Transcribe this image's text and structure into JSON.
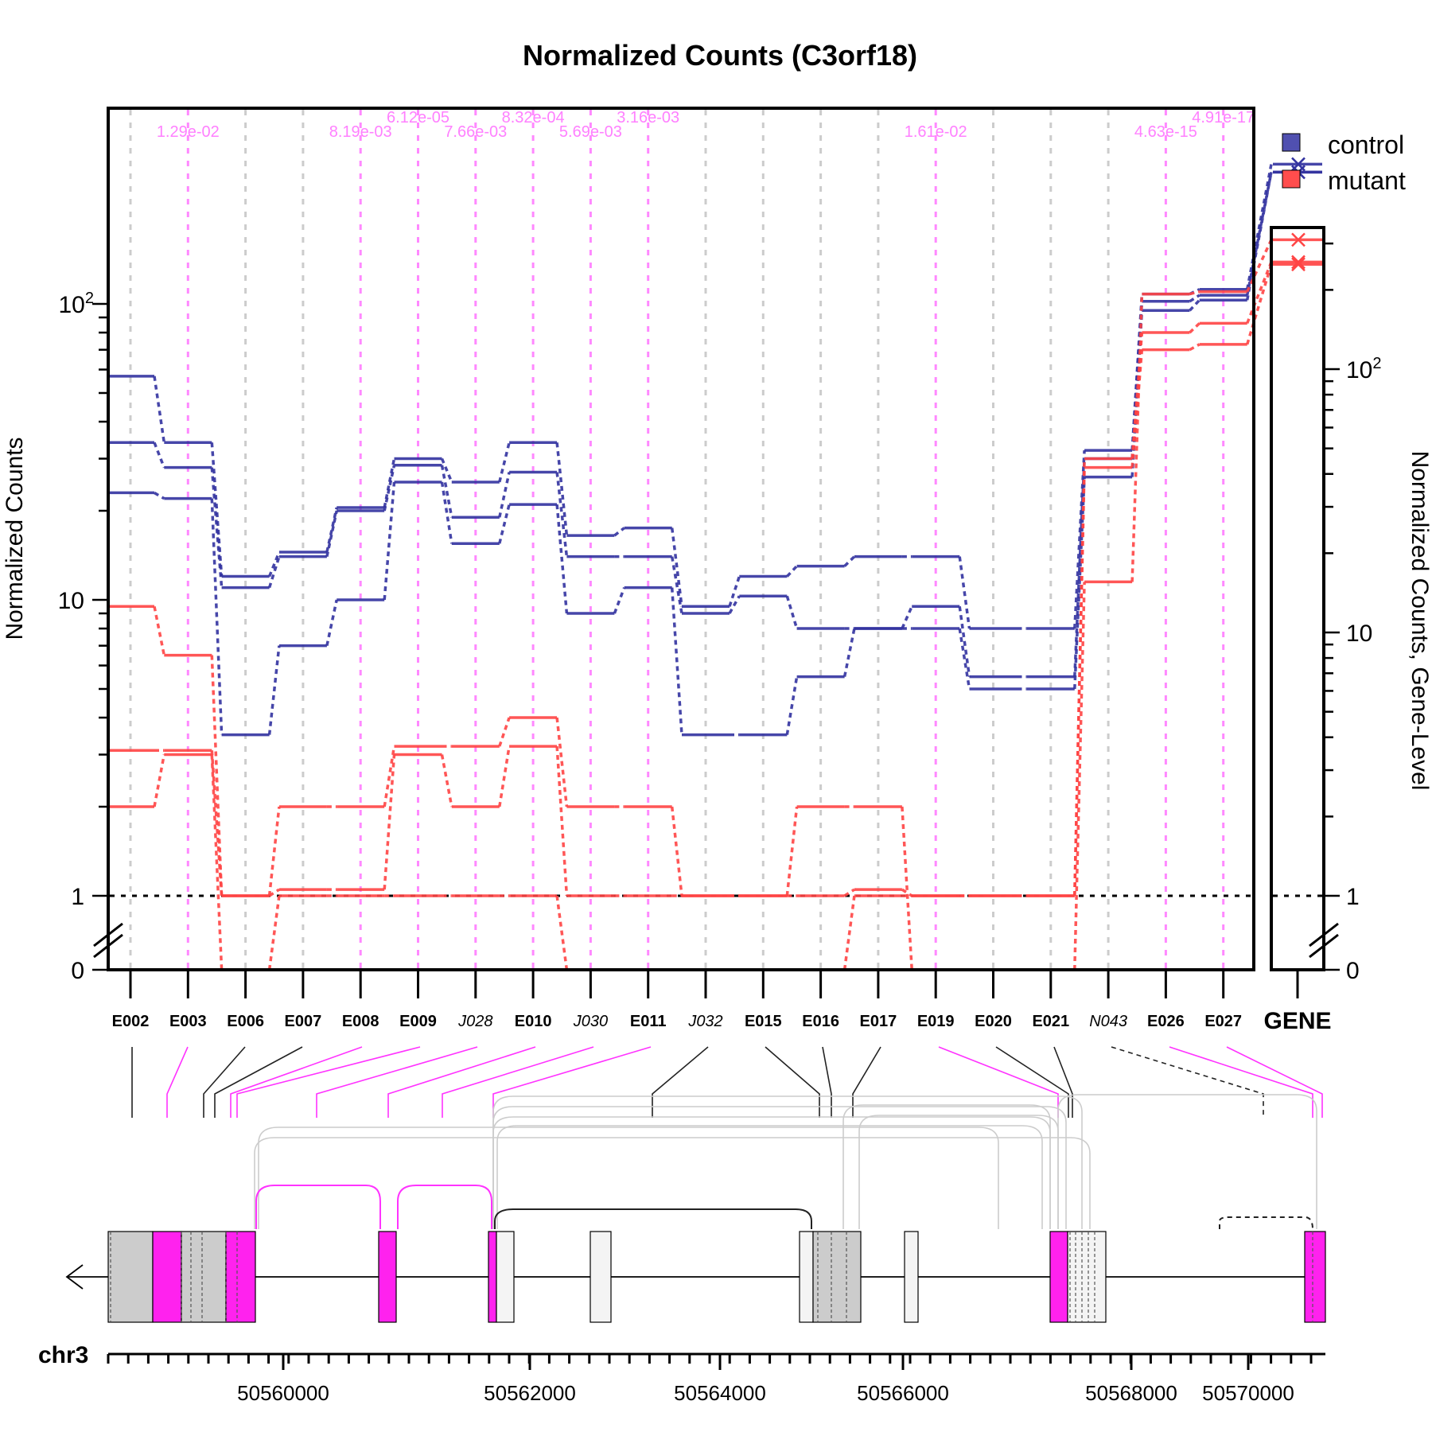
{
  "chart_data": {
    "type": "line",
    "title": "Normalized Counts (C3orf18)",
    "ylabel": "Normalized Counts",
    "ylabel_right": "Normalized Counts, Gene-Level",
    "yscale": "log (broken axis with 0)",
    "ylim": [
      0,
      130
    ],
    "y_ticks": [
      {
        "value": 0,
        "label": "0"
      },
      {
        "value": 1,
        "label": "1"
      },
      {
        "value": 10,
        "label": "10"
      },
      {
        "value": 100,
        "label": "10",
        "sup": "2"
      }
    ],
    "gene_y_ticks": [
      {
        "value": 0,
        "label": "0"
      },
      {
        "value": 1,
        "label": "1"
      },
      {
        "value": 10,
        "label": "10"
      },
      {
        "value": 100,
        "label": "10",
        "sup": "2"
      }
    ],
    "bins": [
      {
        "label": "E002",
        "kind": "exon",
        "sig": false
      },
      {
        "label": "E003",
        "kind": "exon",
        "sig": true
      },
      {
        "label": "E006",
        "kind": "exon",
        "sig": false
      },
      {
        "label": "E007",
        "kind": "exon",
        "sig": false
      },
      {
        "label": "E008",
        "kind": "exon",
        "sig": true
      },
      {
        "label": "E009",
        "kind": "exon",
        "sig": true
      },
      {
        "label": "J028",
        "kind": "junction",
        "sig": true
      },
      {
        "label": "E010",
        "kind": "exon",
        "sig": true
      },
      {
        "label": "J030",
        "kind": "junction",
        "sig": true
      },
      {
        "label": "E011",
        "kind": "exon",
        "sig": true
      },
      {
        "label": "J032",
        "kind": "junction",
        "sig": false
      },
      {
        "label": "E015",
        "kind": "exon",
        "sig": false
      },
      {
        "label": "E016",
        "kind": "exon",
        "sig": false
      },
      {
        "label": "E017",
        "kind": "exon",
        "sig": false
      },
      {
        "label": "E019",
        "kind": "exon",
        "sig": true
      },
      {
        "label": "E020",
        "kind": "exon",
        "sig": false
      },
      {
        "label": "E021",
        "kind": "exon",
        "sig": false
      },
      {
        "label": "N043",
        "kind": "novel",
        "sig": false
      },
      {
        "label": "E026",
        "kind": "exon",
        "sig": true
      },
      {
        "label": "E027",
        "kind": "exon",
        "sig": true
      }
    ],
    "gene_label": "GENE",
    "pvalues": [
      {
        "bin": 1,
        "text": "1.29e-02",
        "row": 1
      },
      {
        "bin": 4,
        "text": "8.19e-03",
        "row": 1
      },
      {
        "bin": 5,
        "text": "6.12e-05",
        "row": 0
      },
      {
        "bin": 6,
        "text": "7.66e-03",
        "row": 1
      },
      {
        "bin": 7,
        "text": "8.32e-04",
        "row": 0
      },
      {
        "bin": 8,
        "text": "5.69e-03",
        "row": 1
      },
      {
        "bin": 9,
        "text": "3.16e-03",
        "row": 0
      },
      {
        "bin": 14,
        "text": "1.61e-02",
        "row": 1
      },
      {
        "bin": 18,
        "text": "4.63e-15",
        "row": 1
      },
      {
        "bin": 19,
        "text": "4.91e-17",
        "row": 0
      }
    ],
    "series": [
      {
        "name": "control",
        "color": "#3333a0",
        "values": [
          57,
          34,
          12,
          14.5,
          20.5,
          30,
          25,
          34,
          16.5,
          17.5,
          9.5,
          12,
          13,
          14,
          14,
          8,
          8,
          32,
          108,
          112
        ]
      },
      {
        "color": "#3333a0",
        "values": [
          34,
          28,
          11,
          14,
          20,
          28.5,
          19,
          27,
          14,
          14,
          9,
          10.3,
          8,
          8,
          9.5,
          5.5,
          5.5,
          30,
          102,
          107
        ]
      },
      {
        "color": "#3333a0",
        "values": [
          23,
          22,
          3.5,
          7,
          10,
          25,
          15.5,
          21,
          9,
          11,
          3.5,
          3.5,
          5.5,
          8,
          8,
          5,
          5,
          26,
          95,
          103
        ]
      },
      {
        "name": "mutant",
        "color": "#ff4444",
        "values": [
          9.5,
          6.5,
          1,
          2,
          2,
          3.2,
          3.2,
          4,
          2,
          2,
          1,
          1,
          2,
          2,
          0,
          0,
          0,
          11.5,
          108,
          110
        ]
      },
      {
        "color": "#ff4444",
        "values": [
          3.1,
          3.1,
          1,
          1.05,
          1.05,
          3,
          2,
          3.2,
          1,
          1,
          1,
          1,
          1,
          1.05,
          1,
          1,
          1,
          30,
          80,
          86
        ]
      },
      {
        "color": "#ff4444",
        "values": [
          2,
          3,
          0,
          1,
          1,
          1,
          1,
          1,
          0,
          0,
          0,
          0,
          0,
          1,
          1,
          1,
          1,
          28,
          70,
          73
        ]
      }
    ],
    "gene_level": [
      {
        "color": "#3333a0",
        "values": [
          600,
          560,
          560
        ]
      },
      {
        "color": "#ff4444",
        "values": [
          310,
          255,
          250
        ]
      }
    ],
    "legend": {
      "placement": "top-right",
      "entries": [
        {
          "label": "control",
          "color": "#5050b0"
        },
        {
          "label": "mutant",
          "color": "#ff4d4d"
        }
      ]
    },
    "gene_model": {
      "chromosome": "chr3",
      "strand": "minus",
      "x_ticks": [
        "50560000",
        "50562000",
        "50564000",
        "50566000",
        "50568000",
        "50570000"
      ]
    }
  }
}
